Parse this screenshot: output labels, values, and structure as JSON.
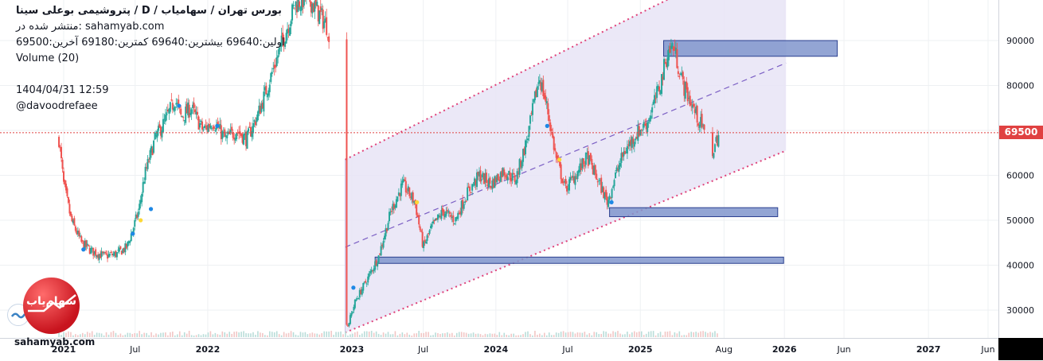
{
  "header": {
    "title": "پتروشیمی بوعلی سینا / D / بورس تهران / سهامیاب",
    "published_on": "منتشر شده در: sahamyab.com",
    "ohlc": "اولین:69640  بیشترین:69640  کمترین:69180  آخرین:69500",
    "volume_label": "Volume (20)",
    "datetime": "1404/04/31 12:59",
    "author": "@davoodrefaee"
  },
  "watermark": {
    "bottom_text": "sahamyab.com",
    "logo_text": "سهام‌یاب"
  },
  "colors": {
    "up": "#26a69a",
    "down": "#ef5350",
    "channel_fill": "#e8e4f6",
    "channel_border": "#e0427a",
    "midline": "#7b5fc4",
    "zone_fill": "#8095cc",
    "zone_border": "#2a3f8f",
    "last_price": "#e04141",
    "grid": "#eef0f3"
  },
  "chart_data": {
    "type": "candlestick",
    "symbol": "پتروشیمی بوعلی سینا",
    "timeframe": "D",
    "last_price": 69500,
    "last_price_label": "69500",
    "y_ticks": [
      30000,
      40000,
      50000,
      60000,
      70000,
      80000,
      90000
    ],
    "y_tick_labels": [
      "30000",
      "40000",
      "50000",
      "60000",
      "70000",
      "80000",
      "90000"
    ],
    "x_ticks": [
      {
        "date": "2021-01",
        "label": "2021"
      },
      {
        "date": "2021-07",
        "label": "Jul"
      },
      {
        "date": "2022-01",
        "label": "2022"
      },
      {
        "date": "2023-01",
        "label": "2023"
      },
      {
        "date": "2023-07",
        "label": "Jul"
      },
      {
        "date": "2024-01",
        "label": "2024"
      },
      {
        "date": "2024-07",
        "label": "Jul"
      },
      {
        "date": "2025-01",
        "label": "2025"
      },
      {
        "date": "2025-08",
        "label": "Aug"
      },
      {
        "date": "2026-01",
        "label": "2026"
      },
      {
        "date": "2026-06",
        "label": "Jun"
      },
      {
        "date": "2027-01",
        "label": "2027"
      },
      {
        "date": "2027-06",
        "label": "Jun"
      }
    ],
    "price_path": [
      [
        "2020-12-20",
        68000
      ],
      [
        "2021-01-01",
        58000
      ],
      [
        "2021-01-20",
        50000
      ],
      [
        "2021-02-15",
        45000
      ],
      [
        "2021-03-15",
        43000
      ],
      [
        "2021-04-15",
        42000
      ],
      [
        "2021-05-15",
        42500
      ],
      [
        "2021-06-10",
        44000
      ],
      [
        "2021-06-25",
        48000
      ],
      [
        "2021-07-10",
        52000
      ],
      [
        "2021-07-25",
        60000
      ],
      [
        "2021-08-20",
        68000
      ],
      [
        "2021-09-20",
        73000
      ],
      [
        "2021-10-10",
        77000
      ],
      [
        "2021-10-25",
        73000
      ],
      [
        "2021-11-20",
        75000
      ],
      [
        "2021-12-20",
        70000
      ],
      [
        "2022-01-15",
        72000
      ],
      [
        "2022-02-15",
        68000
      ],
      [
        "2022-03-15",
        70000
      ],
      [
        "2022-04-10",
        68000
      ],
      [
        "2022-05-10",
        74000
      ],
      [
        "2022-06-10",
        82000
      ],
      [
        "2022-07-10",
        90000
      ],
      [
        "2022-08-10",
        98000
      ],
      [
        "2022-09-10",
        100000
      ],
      [
        "2022-10-10",
        96000
      ],
      [
        "2022-11-01",
        93000
      ],
      [
        "2022-12-20",
        26000
      ],
      [
        "2023-01-10",
        32000
      ],
      [
        "2023-02-10",
        37000
      ],
      [
        "2023-03-10",
        42000
      ],
      [
        "2023-04-10",
        52000
      ],
      [
        "2023-05-10",
        58000
      ],
      [
        "2023-06-10",
        54000
      ],
      [
        "2023-07-01",
        44000
      ],
      [
        "2023-07-20",
        48000
      ],
      [
        "2023-08-20",
        52000
      ],
      [
        "2023-09-20",
        50000
      ],
      [
        "2023-10-20",
        56000
      ],
      [
        "2023-11-20",
        60000
      ],
      [
        "2023-12-20",
        58000
      ],
      [
        "2024-01-20",
        61000
      ],
      [
        "2024-02-20",
        59000
      ],
      [
        "2024-03-20",
        68000
      ],
      [
        "2024-04-20",
        82000
      ],
      [
        "2024-05-10",
        75000
      ],
      [
        "2024-06-01",
        64000
      ],
      [
        "2024-06-25",
        57000
      ],
      [
        "2024-07-20",
        60000
      ],
      [
        "2024-08-20",
        64000
      ],
      [
        "2024-09-20",
        58000
      ],
      [
        "2024-10-10",
        54000
      ],
      [
        "2024-10-30",
        60000
      ],
      [
        "2024-11-20",
        65000
      ],
      [
        "2024-12-20",
        69000
      ],
      [
        "2025-01-20",
        72000
      ],
      [
        "2025-02-20",
        80000
      ],
      [
        "2025-03-10",
        87000
      ],
      [
        "2025-03-25",
        89000
      ],
      [
        "2025-04-20",
        80000
      ],
      [
        "2025-05-20",
        74000
      ],
      [
        "2025-06-10",
        70000
      ],
      [
        "2025-06-25",
        63000
      ],
      [
        "2025-07-10",
        67000
      ],
      [
        "2025-07-20",
        69500
      ]
    ],
    "channel": {
      "lower": [
        [
          "2022-12-15",
          25000
        ],
        [
          "2026-01-05",
          65500
        ]
      ],
      "upper": [
        [
          "2022-12-15",
          63500
        ],
        [
          "2025-03-20",
          99500
        ]
      ],
      "upper_after_edge": [
        [
          "2025-03-20",
          99500
        ],
        [
          "2026-01-05",
          99500
        ]
      ],
      "middle": [
        [
          "2022-12-15",
          44000
        ],
        [
          "2026-01-05",
          85000
        ]
      ]
    },
    "zones": [
      {
        "from": "2025-03-01",
        "to": "2026-05-15",
        "low": 86500,
        "high": 90000
      },
      {
        "from": "2024-10-15",
        "to": "2025-12-15",
        "low": 50800,
        "high": 52800
      },
      {
        "from": "2023-03-01",
        "to": "2025-12-30",
        "low": 40400,
        "high": 41800
      }
    ],
    "markers": [
      {
        "date": "2021-02-20",
        "price": 43500,
        "color": "#1e88e5"
      },
      {
        "date": "2021-06-25",
        "price": 47000,
        "color": "#1e88e5"
      },
      {
        "date": "2021-07-15",
        "price": 50000,
        "color": "#fdd835"
      },
      {
        "date": "2021-08-10",
        "price": 52500,
        "color": "#1e88e5"
      },
      {
        "date": "2021-10-20",
        "price": 75500,
        "color": "#1e88e5"
      },
      {
        "date": "2022-01-25",
        "price": 71000,
        "color": "#1e88e5"
      },
      {
        "date": "2023-01-05",
        "price": 35000,
        "color": "#1e88e5"
      },
      {
        "date": "2023-06-15",
        "price": 54000,
        "color": "#fdd835"
      },
      {
        "date": "2024-06-10",
        "price": 63500,
        "color": "#fdd835"
      },
      {
        "date": "2024-10-20",
        "price": 54000,
        "color": "#1e88e5"
      },
      {
        "date": "2024-05-10",
        "price": 71000,
        "color": "#1e88e5"
      }
    ]
  }
}
